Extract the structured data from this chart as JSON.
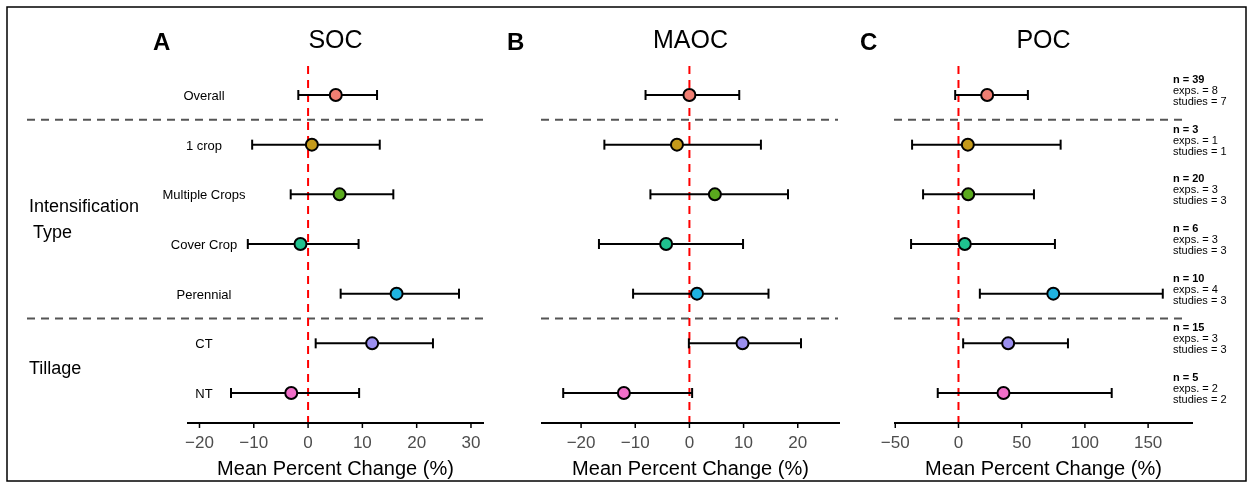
{
  "chart_data": [
    {
      "type": "scatter",
      "orientation": "horizontal",
      "title": "SOC",
      "xlabel": "Mean Percent Change (%)",
      "categories": [
        "Overall",
        "1 crop",
        "Multiple Crops",
        "Cover Crop",
        "Perennial",
        "CT",
        "NT"
      ],
      "values": [
        5.1,
        0.7,
        5.8,
        -1.4,
        16.3,
        11.8,
        -3.1
      ],
      "errors": [
        [
          -1.8,
          12.7
        ],
        [
          -10.3,
          13.2
        ],
        [
          -3.2,
          15.7
        ],
        [
          -11.1,
          9.3
        ],
        [
          6.0,
          27.8
        ],
        [
          1.4,
          23.0
        ],
        [
          -14.2,
          9.4
        ]
      ],
      "colors": [
        "#f07f73",
        "#c49a1a",
        "#5aaa1e",
        "#1fc28f",
        "#1fb3e0",
        "#9b8ff0",
        "#f06ec8"
      ],
      "marker": "circle",
      "xlim": [
        -22.3,
        32.4
      ],
      "xticks": [
        -20,
        -10,
        0,
        10,
        20,
        30
      ],
      "ref_lines": [
        {
          "axis": "x",
          "value": 0,
          "color": "#ff0000",
          "line_style": "dashed"
        }
      ],
      "annotations": [
        "A",
        "Intensification Type",
        "Tillage"
      ]
    },
    {
      "type": "scatter",
      "orientation": "horizontal",
      "title": "MAOC",
      "xlabel": "Mean Percent Change (%)",
      "categories": [
        null,
        null,
        null,
        null,
        null,
        null,
        null
      ],
      "values": [
        0,
        -2.3,
        4.7,
        -4.3,
        1.4,
        9.8,
        -12.1
      ],
      "errors": [
        [
          -8.1,
          9.2
        ],
        [
          -15.7,
          13.2
        ],
        [
          -7.2,
          18.2
        ],
        [
          -16.7,
          9.9
        ],
        [
          -10.4,
          14.6
        ],
        [
          -0.1,
          20.6
        ],
        [
          -23.3,
          0.5
        ]
      ],
      "colors": [
        "#f07f73",
        "#c49a1a",
        "#5aaa1e",
        "#1fc28f",
        "#1fb3e0",
        "#9b8ff0",
        "#f06ec8"
      ],
      "marker": "circle",
      "xlim": [
        -27.4,
        27.8
      ],
      "xticks": [
        -20,
        -10,
        0,
        10,
        20
      ],
      "tick_labels": "x",
      "ref_lines": [
        {
          "axis": "x",
          "value": 0,
          "color": "#ff0000",
          "line_style": "dashed"
        }
      ],
      "annotations": [
        "B"
      ]
    },
    {
      "type": "scatter",
      "orientation": "horizontal",
      "title": "POC",
      "xlabel": "Mean Percent Change (%)",
      "categories": [
        null,
        null,
        null,
        null,
        null,
        null,
        null
      ],
      "values": [
        22.7,
        7.4,
        7.7,
        5,
        75,
        39.3,
        35.6
      ],
      "errors": [
        [
          -2.6,
          54.9
        ],
        [
          -36.7,
          80.8
        ],
        [
          -28,
          59.7
        ],
        [
          -37.5,
          76.3
        ],
        [
          16.9,
          161.6
        ],
        [
          3.7,
          86.6
        ],
        [
          -16.4,
          121.2
        ]
      ],
      "colors": [
        "#f07f73",
        "#c49a1a",
        "#5aaa1e",
        "#1fc28f",
        "#1fb3e0",
        "#9b8ff0",
        "#f06ec8"
      ],
      "marker": "circle",
      "xlim": [
        -51,
        185.5
      ],
      "xticks": [
        -50,
        0,
        50,
        100,
        150
      ],
      "tick_labels": "x",
      "ref_lines": [
        {
          "axis": "x",
          "value": 0,
          "color": "#ff0000",
          "line_style": "dashed"
        }
      ],
      "annotations": [
        "C",
        "n = 39\nexps. = 8\nstudies = 7",
        "n = 3\nexps. = 1\nstudies = 1",
        "n = 20\nexps. = 3\nstudies = 3",
        "n = 6\nexps. = 3\nstudies = 3",
        "n = 10\nexps. = 4\nstudies = 3",
        "n = 15\nexps. = 3\nstudies = 3",
        "n = 5\nexps. = 2\nstudies = 2"
      ]
    }
  ]
}
